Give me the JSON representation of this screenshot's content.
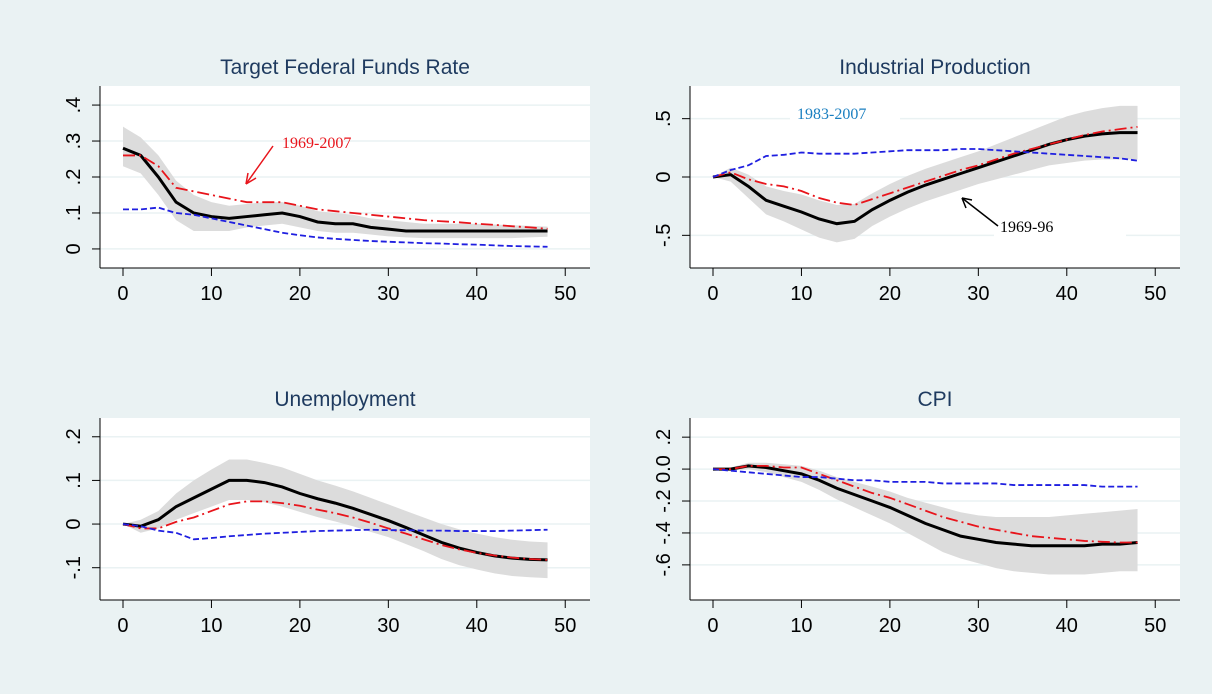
{
  "chart_data": [
    {
      "type": "line",
      "title": "Target Federal Funds Rate",
      "x": [
        0,
        2,
        4,
        6,
        8,
        10,
        12,
        14,
        16,
        18,
        20,
        22,
        24,
        26,
        28,
        30,
        32,
        34,
        36,
        38,
        40,
        42,
        44,
        46,
        48
      ],
      "xlim": [
        -2.6,
        52.8
      ],
      "xticks": [
        0,
        10,
        20,
        30,
        40,
        50
      ],
      "ylim": [
        -0.053,
        0.453
      ],
      "yticks": [
        0,
        {
          "value": 0.1,
          "label": ".1"
        },
        {
          "value": 0.2,
          "label": ".2"
        },
        {
          "value": 0.3,
          "label": ".3"
        },
        {
          "value": 0.4,
          "label": ".4"
        }
      ],
      "grid": true,
      "band": {
        "color": "#dcdcdc",
        "upper": [
          0.34,
          0.31,
          0.26,
          0.19,
          0.15,
          0.13,
          0.12,
          0.125,
          0.13,
          0.13,
          0.12,
          0.105,
          0.1,
          0.095,
          0.085,
          0.08,
          0.075,
          0.07,
          0.07,
          0.07,
          0.07,
          0.068,
          0.066,
          0.064,
          0.062
        ],
        "lower": [
          0.23,
          0.21,
          0.15,
          0.08,
          0.05,
          0.05,
          0.05,
          0.06,
          0.065,
          0.07,
          0.06,
          0.05,
          0.045,
          0.045,
          0.04,
          0.035,
          0.032,
          0.03,
          0.03,
          0.03,
          0.03,
          0.03,
          0.03,
          0.032,
          0.034
        ]
      },
      "series": [
        {
          "color": "#000000",
          "dash": "none",
          "values": [
            0.28,
            0.26,
            0.2,
            0.13,
            0.1,
            0.09,
            0.085,
            0.09,
            0.095,
            0.1,
            0.09,
            0.075,
            0.07,
            0.07,
            0.06,
            0.055,
            0.05,
            0.05,
            0.05,
            0.05,
            0.05,
            0.05,
            0.05,
            0.05,
            0.05
          ]
        },
        {
          "color": "#e8141b",
          "dash": "12 4 2 4",
          "values": [
            0.26,
            0.26,
            0.23,
            0.17,
            0.16,
            0.15,
            0.14,
            0.13,
            0.13,
            0.13,
            0.12,
            0.11,
            0.105,
            0.1,
            0.095,
            0.09,
            0.085,
            0.08,
            0.077,
            0.074,
            0.07,
            0.067,
            0.063,
            0.06,
            0.056
          ]
        },
        {
          "color": "#1f1fe0",
          "dash": "6 3",
          "values": [
            0.11,
            0.11,
            0.115,
            0.1,
            0.095,
            0.085,
            0.075,
            0.065,
            0.055,
            0.045,
            0.038,
            0.032,
            0.028,
            0.025,
            0.022,
            0.02,
            0.018,
            0.016,
            0.015,
            0.013,
            0.012,
            0.01,
            0.008,
            0.007,
            0.006
          ]
        }
      ],
      "annotations": [
        "1969-2007"
      ]
    },
    {
      "type": "line",
      "title": "Industrial Production",
      "x": [
        0,
        2,
        4,
        6,
        8,
        10,
        12,
        14,
        16,
        18,
        20,
        22,
        24,
        26,
        28,
        30,
        32,
        34,
        36,
        38,
        40,
        42,
        44,
        46,
        48
      ],
      "xlim": [
        -2.6,
        52.8
      ],
      "xticks": [
        0,
        10,
        20,
        30,
        40,
        50
      ],
      "ylim": [
        -0.78,
        0.78
      ],
      "yticks": [
        {
          "value": -0.5,
          "label": "-.5"
        },
        0,
        {
          "value": 0.5,
          "label": ".5"
        }
      ],
      "grid": true,
      "band": {
        "color": "#dcdcdc",
        "upper": [
          0,
          0.08,
          0.02,
          -0.08,
          -0.12,
          -0.15,
          -0.2,
          -0.24,
          -0.23,
          -0.14,
          -0.06,
          0.01,
          0.07,
          0.12,
          0.17,
          0.22,
          0.28,
          0.34,
          0.4,
          0.46,
          0.52,
          0.56,
          0.59,
          0.61,
          0.61
        ],
        "lower": [
          0,
          -0.04,
          -0.18,
          -0.32,
          -0.38,
          -0.45,
          -0.52,
          -0.56,
          -0.53,
          -0.42,
          -0.34,
          -0.27,
          -0.21,
          -0.16,
          -0.11,
          -0.06,
          -0.02,
          0.02,
          0.06,
          0.1,
          0.12,
          0.14,
          0.15,
          0.15,
          0.15
        ]
      },
      "series": [
        {
          "color": "#000000",
          "dash": "none",
          "values": [
            0,
            0.02,
            -0.08,
            -0.2,
            -0.25,
            -0.3,
            -0.36,
            -0.4,
            -0.38,
            -0.28,
            -0.2,
            -0.13,
            -0.07,
            -0.02,
            0.03,
            0.08,
            0.13,
            0.18,
            0.23,
            0.28,
            0.32,
            0.35,
            0.37,
            0.38,
            0.38
          ]
        },
        {
          "color": "#e8141b",
          "dash": "12 4 2 4",
          "values": [
            0,
            0.04,
            -0.02,
            -0.06,
            -0.08,
            -0.12,
            -0.18,
            -0.22,
            -0.24,
            -0.19,
            -0.14,
            -0.09,
            -0.04,
            0.01,
            0.06,
            0.1,
            0.15,
            0.2,
            0.24,
            0.28,
            0.32,
            0.36,
            0.39,
            0.41,
            0.43
          ]
        },
        {
          "color": "#1f1fe0",
          "dash": "6 3",
          "values": [
            0,
            0.06,
            0.1,
            0.18,
            0.19,
            0.21,
            0.2,
            0.2,
            0.2,
            0.21,
            0.22,
            0.23,
            0.23,
            0.23,
            0.24,
            0.24,
            0.23,
            0.22,
            0.21,
            0.2,
            0.19,
            0.18,
            0.17,
            0.16,
            0.14
          ]
        }
      ],
      "annotations": [
        "1983-2007",
        "1969-96"
      ]
    },
    {
      "type": "line",
      "title": "Unemployment",
      "x": [
        0,
        2,
        4,
        6,
        8,
        10,
        12,
        14,
        16,
        18,
        20,
        22,
        24,
        26,
        28,
        30,
        32,
        34,
        36,
        38,
        40,
        42,
        44,
        46,
        48
      ],
      "xlim": [
        -2.6,
        52.8
      ],
      "xticks": [
        0,
        10,
        20,
        30,
        40,
        50
      ],
      "ylim": [
        -0.174,
        0.243
      ],
      "yticks": [
        {
          "value": -0.1,
          "label": "-.1"
        },
        0,
        {
          "value": 0.1,
          "label": ".1"
        },
        {
          "value": 0.2,
          "label": ".2"
        }
      ],
      "grid": true,
      "band": {
        "color": "#dcdcdc",
        "upper": [
          0,
          0.01,
          0.03,
          0.07,
          0.1,
          0.125,
          0.148,
          0.148,
          0.14,
          0.13,
          0.115,
          0.1,
          0.088,
          0.075,
          0.06,
          0.045,
          0.03,
          0.015,
          0,
          -0.012,
          -0.022,
          -0.03,
          -0.036,
          -0.04,
          -0.042
        ],
        "lower": [
          0,
          -0.02,
          -0.01,
          0.01,
          0.025,
          0.04,
          0.055,
          0.055,
          0.05,
          0.04,
          0.028,
          0.016,
          0.006,
          -0.005,
          -0.018,
          -0.03,
          -0.046,
          -0.062,
          -0.08,
          -0.094,
          -0.104,
          -0.113,
          -0.119,
          -0.122,
          -0.124
        ]
      },
      "series": [
        {
          "color": "#000000",
          "dash": "none",
          "values": [
            0,
            -0.005,
            0.01,
            0.04,
            0.06,
            0.08,
            0.1,
            0.1,
            0.095,
            0.085,
            0.07,
            0.058,
            0.048,
            0.036,
            0.022,
            0.008,
            -0.008,
            -0.025,
            -0.042,
            -0.055,
            -0.065,
            -0.073,
            -0.078,
            -0.081,
            -0.082
          ]
        },
        {
          "color": "#e8141b",
          "dash": "12 4 2 4",
          "values": [
            0,
            -0.01,
            -0.01,
            0.005,
            0.015,
            0.03,
            0.045,
            0.052,
            0.052,
            0.048,
            0.042,
            0.033,
            0.025,
            0.015,
            0.003,
            -0.01,
            -0.022,
            -0.035,
            -0.048,
            -0.058,
            -0.066,
            -0.072,
            -0.077,
            -0.08,
            -0.082
          ]
        },
        {
          "color": "#1f1fe0",
          "dash": "6 3",
          "values": [
            0,
            -0.005,
            -0.015,
            -0.02,
            -0.035,
            -0.032,
            -0.028,
            -0.025,
            -0.022,
            -0.02,
            -0.018,
            -0.016,
            -0.015,
            -0.014,
            -0.013,
            -0.014,
            -0.014,
            -0.015,
            -0.015,
            -0.016,
            -0.016,
            -0.016,
            -0.015,
            -0.014,
            -0.013
          ]
        }
      ]
    },
    {
      "type": "line",
      "title": "CPI",
      "x": [
        0,
        2,
        4,
        6,
        8,
        10,
        12,
        14,
        16,
        18,
        20,
        22,
        24,
        26,
        28,
        30,
        32,
        34,
        36,
        38,
        40,
        42,
        44,
        46,
        48
      ],
      "xlim": [
        -2.6,
        52.8
      ],
      "xticks": [
        0,
        10,
        20,
        30,
        40,
        50
      ],
      "ylim": [
        -0.82,
        0.32
      ],
      "yticks": [
        {
          "value": -0.6,
          "label": "-.6"
        },
        {
          "value": -0.4,
          "label": "-.4"
        },
        {
          "value": -0.2,
          "label": "-.2"
        },
        {
          "value": 0,
          "label": "0.0"
        },
        {
          "value": 0.2,
          "label": ".2"
        }
      ],
      "grid": true,
      "band": {
        "color": "#dcdcdc",
        "upper": [
          0,
          0.01,
          0.04,
          0.04,
          0.03,
          0.02,
          -0.01,
          -0.05,
          -0.08,
          -0.11,
          -0.14,
          -0.18,
          -0.21,
          -0.24,
          -0.27,
          -0.29,
          -0.3,
          -0.3,
          -0.3,
          -0.3,
          -0.29,
          -0.28,
          -0.27,
          -0.26,
          -0.25
        ],
        "lower": [
          0,
          -0.01,
          0,
          -0.02,
          -0.05,
          -0.08,
          -0.13,
          -0.19,
          -0.24,
          -0.29,
          -0.34,
          -0.4,
          -0.46,
          -0.52,
          -0.56,
          -0.59,
          -0.62,
          -0.64,
          -0.65,
          -0.66,
          -0.66,
          -0.66,
          -0.65,
          -0.64,
          -0.64
        ]
      },
      "series": [
        {
          "color": "#000000",
          "dash": "none",
          "values": [
            0,
            0,
            0.02,
            0.01,
            -0.01,
            -0.03,
            -0.07,
            -0.12,
            -0.16,
            -0.2,
            -0.24,
            -0.29,
            -0.34,
            -0.38,
            -0.42,
            -0.44,
            -0.46,
            -0.47,
            -0.48,
            -0.48,
            -0.48,
            -0.48,
            -0.47,
            -0.47,
            -0.46
          ]
        },
        {
          "color": "#e8141b",
          "dash": "12 4 2 4",
          "values": [
            0,
            0,
            0.02,
            0.02,
            0.01,
            0.01,
            -0.03,
            -0.07,
            -0.11,
            -0.15,
            -0.18,
            -0.22,
            -0.26,
            -0.3,
            -0.33,
            -0.36,
            -0.38,
            -0.4,
            -0.42,
            -0.43,
            -0.44,
            -0.45,
            -0.455,
            -0.46,
            -0.46
          ]
        },
        {
          "color": "#1f1fe0",
          "dash": "6 3",
          "values": [
            0,
            -0.01,
            -0.02,
            -0.03,
            -0.04,
            -0.05,
            -0.05,
            -0.06,
            -0.07,
            -0.07,
            -0.08,
            -0.08,
            -0.08,
            -0.09,
            -0.09,
            -0.09,
            -0.09,
            -0.1,
            -0.1,
            -0.1,
            -0.1,
            -0.1,
            -0.11,
            -0.11,
            -0.11
          ]
        }
      ]
    }
  ]
}
